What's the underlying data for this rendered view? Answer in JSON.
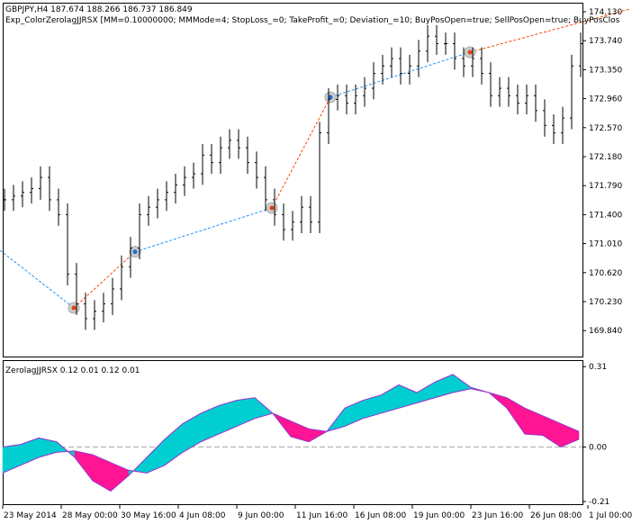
{
  "header": {
    "symbol_line": "GBPJPY,H4  187.674 188.266 186.737 186.849",
    "expert_line": "Exp_ColorZerolagJJRSX [MM=0.10000000; MMMode=4; StopLoss_=0; TakeProfit_=0; Deviation_=10; BuyPosOpen=true; SellPosOpen=true; BuyPosClos"
  },
  "indicator_label": "ZerolagJJRSX 0.12 0.01 0.12 0.01",
  "colors": {
    "bull": "#00CED1",
    "bear": "#FF1493",
    "line": "#9932CC",
    "buy": "#1E6FD9",
    "sell": "#E8401C",
    "trade_buy_line": "#1E90FF",
    "trade_sell_line": "#FF4500"
  },
  "chart_data": [
    {
      "type": "bar",
      "name": "price",
      "ylim": [
        169.6,
        174.2
      ],
      "yticks": [
        "174.130",
        "173.740",
        "173.350",
        "172.960",
        "172.570",
        "172.180",
        "171.790",
        "171.400",
        "171.010",
        "170.620",
        "170.230",
        "169.840"
      ],
      "xticks": [
        "23 May 2014",
        "28 May 00:00",
        "30 May 16:00",
        "4 Jun 08:00",
        "9 Jun 00:00",
        "11 Jun 16:00",
        "16 Jun 08:00",
        "19 Jun 00:00",
        "23 Jun 16:00",
        "26 Jun 08:00",
        "1 Jul 00:00"
      ],
      "close": [
        171.6,
        171.65,
        171.7,
        171.75,
        171.9,
        171.6,
        171.4,
        170.6,
        170.2,
        170.0,
        170.1,
        170.2,
        170.4,
        170.7,
        170.95,
        171.4,
        171.5,
        171.6,
        171.7,
        171.8,
        171.9,
        171.95,
        172.2,
        172.1,
        172.3,
        172.4,
        172.3,
        172.1,
        171.9,
        171.6,
        171.4,
        171.2,
        171.3,
        171.5,
        171.3,
        172.5,
        172.95,
        173.0,
        172.9,
        173.0,
        173.1,
        173.3,
        173.4,
        173.5,
        173.3,
        173.4,
        173.6,
        173.8,
        173.7,
        173.7,
        173.5,
        173.4,
        173.5,
        173.3,
        173.0,
        173.1,
        173.0,
        172.9,
        173.0,
        172.8,
        172.6,
        172.5,
        172.7,
        173.4,
        173.7
      ],
      "trades": [
        {
          "bar": 7.7,
          "price": 170.145,
          "side": "sell"
        },
        {
          "bar": 14.5,
          "price": 170.9,
          "side": "buy"
        },
        {
          "bar": 29.7,
          "price": 171.49,
          "side": "sell"
        },
        {
          "bar": 36.2,
          "price": 172.98,
          "side": "buy"
        },
        {
          "bar": 51.7,
          "price": 173.585,
          "side": "sell"
        }
      ]
    },
    {
      "type": "area",
      "name": "ZerolagJJRSX",
      "ylim": [
        -0.21,
        0.31
      ],
      "yticks": [
        "0.31",
        "0.00",
        "-0.21"
      ],
      "series": [
        {
          "values": [
            0.0,
            0.01,
            0.035,
            0.02,
            -0.04,
            -0.13,
            -0.17,
            -0.11,
            -0.04,
            0.03,
            0.09,
            0.13,
            0.16,
            0.18,
            0.19,
            0.13,
            0.04,
            0.02,
            0.06,
            0.15,
            0.18,
            0.2,
            0.24,
            0.21,
            0.25,
            0.28,
            0.23,
            0.21,
            0.15,
            0.05,
            0.045,
            0.0,
            0.03
          ]
        },
        {
          "values": [
            -0.1,
            -0.07,
            -0.04,
            -0.02,
            -0.015,
            -0.03,
            -0.06,
            -0.09,
            -0.1,
            -0.07,
            -0.02,
            0.02,
            0.05,
            0.08,
            0.11,
            0.13,
            0.1,
            0.07,
            0.06,
            0.08,
            0.11,
            0.13,
            0.15,
            0.17,
            0.19,
            0.21,
            0.225,
            0.21,
            0.19,
            0.15,
            0.12,
            0.09,
            0.06
          ]
        }
      ]
    }
  ]
}
